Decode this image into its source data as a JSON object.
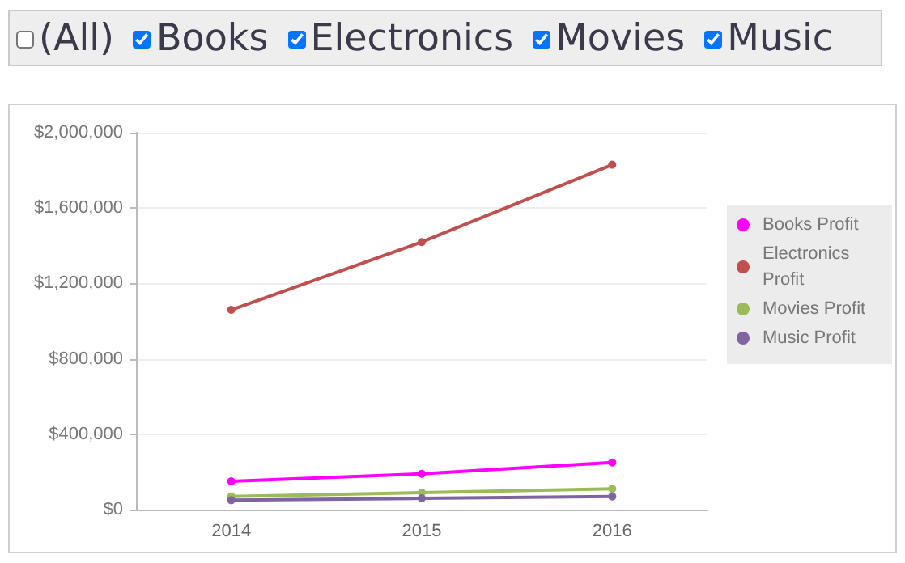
{
  "chart_data": {
    "type": "line",
    "annotations": [
      "(All)",
      "Books",
      "Electronics",
      "Movies",
      "Music"
    ],
    "categories": [
      "2014",
      "2015",
      "2016"
    ],
    "series": [
      {
        "name": "Books Profit",
        "color": "#ff00ff",
        "values": [
          150000,
          190000,
          250000
        ]
      },
      {
        "name": "Electronics Profit",
        "color": "#c0504d",
        "values": [
          1060000,
          1420000,
          1830000
        ]
      },
      {
        "name": "Movies Profit",
        "color": "#9bbb59",
        "values": [
          70000,
          90000,
          110000
        ]
      },
      {
        "name": "Music Profit",
        "color": "#8064a2",
        "values": [
          50000,
          60000,
          70000
        ]
      }
    ],
    "ylim": [
      0,
      2000000
    ],
    "yticks": [
      {
        "value": 0,
        "label": "$0"
      },
      {
        "value": 400000,
        "label": "$400,000"
      },
      {
        "value": 800000,
        "label": "$800,000"
      },
      {
        "value": 1200000,
        "label": "$1,200,000"
      },
      {
        "value": 1600000,
        "label": "$1,600,000"
      },
      {
        "value": 2000000,
        "label": "$2,000,000"
      }
    ],
    "grid": "y",
    "legend": "right",
    "marker": "circle",
    "line_style": "solid"
  }
}
